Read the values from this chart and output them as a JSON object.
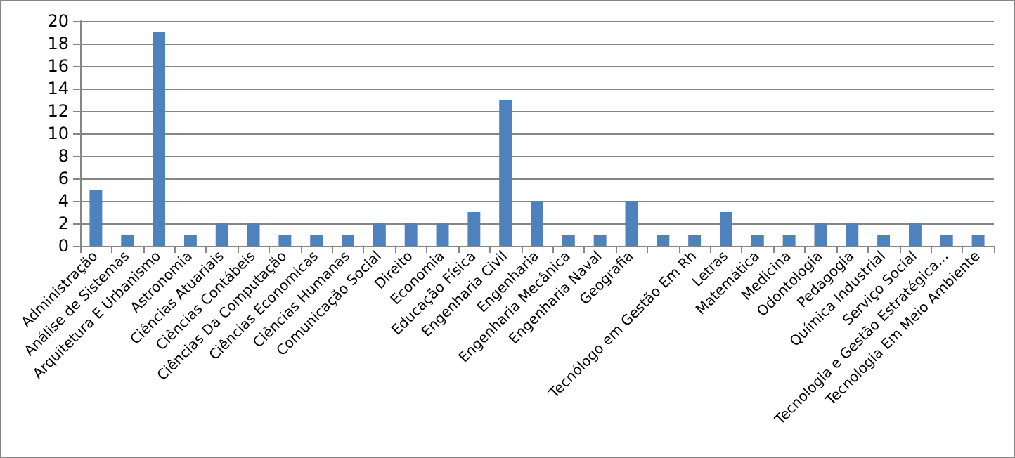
{
  "chart_data": {
    "type": "bar",
    "categories": [
      "Administração",
      "Análise de Sistemas",
      "Arquitetura E Urbanismo",
      "Astronomia",
      "Ciências Atuariais",
      "Ciências Contábeis",
      "Ciências Da Computação",
      "Ciências Economicas",
      "Ciências Humanas",
      "Comunicação Social",
      "Direito",
      "Economia",
      "Educação Física",
      "Engenharia Civil",
      "Engenharia",
      "Engenharia Mecânica",
      "Engenharia Naval",
      "Geografia",
      null,
      "Tecnólogo em Gestão Em Rh",
      "Letras",
      "Matemática",
      "Medicina",
      "Odontologia",
      "Pedagogia",
      "Química Industrial",
      "Serviço Social",
      "Tecnologia e Gestão Estratégica...",
      "Tecnologia Em Meio Ambiente"
    ],
    "values": [
      5,
      1,
      19,
      1,
      2,
      2,
      1,
      1,
      1,
      2,
      2,
      2,
      3,
      13,
      4,
      1,
      1,
      4,
      1,
      1,
      3,
      1,
      1,
      2,
      2,
      1,
      2,
      1,
      1
    ],
    "color": "#4f81bd",
    "ylim": [
      0,
      20
    ],
    "yticks": [
      0,
      2,
      4,
      6,
      8,
      10,
      12,
      14,
      16,
      18,
      20
    ],
    "grid": "y"
  }
}
